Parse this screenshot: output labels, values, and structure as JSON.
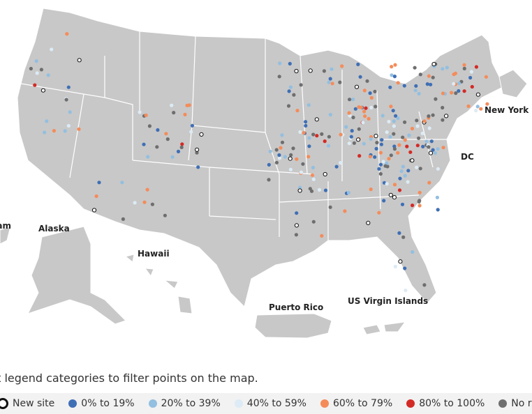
{
  "map": {
    "labels": {
      "alaska": "Alaska",
      "hawaii": "Hawaii",
      "puerto_rico": "Puerto Rico",
      "usvi": "US Virgin Islands",
      "dc": "DC",
      "new_york_city": "New York City",
      "guam": "Guam"
    }
  },
  "caption": "Select legend categories to filter points on the map.",
  "legend": [
    {
      "label": "New site",
      "color": "#ffffff"
    },
    {
      "label": "0% to 19%",
      "color": "#3f6fb5"
    },
    {
      "label": "20% to 39%",
      "color": "#93bfe0"
    },
    {
      "label": "40% to 59%",
      "color": "#dcebf5"
    },
    {
      "label": "60% to 79%",
      "color": "#f48c5a"
    },
    {
      "label": "80% to 100%",
      "color": "#d42a25"
    },
    {
      "label": "No recent data",
      "color": "#6e6e6e"
    }
  ]
}
